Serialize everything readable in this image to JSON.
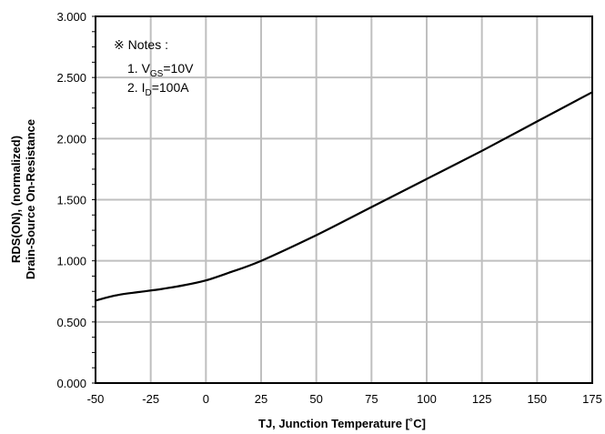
{
  "chart_data": {
    "type": "line",
    "xlabel": "TJ, Junction Temperature [˚C]",
    "ylabel_line1": "RDS(ON), (normalized)",
    "ylabel_line2": "Drain-Source On-Resistance",
    "xlim": [
      -50,
      175
    ],
    "ylim": [
      0.0,
      3.0
    ],
    "x_ticks": [
      "-50",
      "-25",
      "0",
      "25",
      "50",
      "75",
      "100",
      "125",
      "150",
      "175"
    ],
    "y_ticks": [
      "0.000",
      "0.500",
      "1.000",
      "1.500",
      "2.000",
      "2.500",
      "3.000"
    ],
    "grid": true,
    "series": [
      {
        "x": [
          -50,
          -40,
          -30,
          -20,
          -10,
          0,
          10,
          25,
          50,
          75,
          100,
          125,
          150,
          175
        ],
        "y": [
          0.675,
          0.72,
          0.745,
          0.77,
          0.8,
          0.84,
          0.9,
          1.0,
          1.21,
          1.44,
          1.67,
          1.9,
          2.14,
          2.38
        ]
      }
    ],
    "notes": {
      "title": "※ Notes :",
      "item1_prefix": "1. V",
      "item1_sub": "GS",
      "item1_suffix": "=10V",
      "item2_prefix": "2. I",
      "item2_sub": "D",
      "item2_suffix": "=100A"
    }
  }
}
